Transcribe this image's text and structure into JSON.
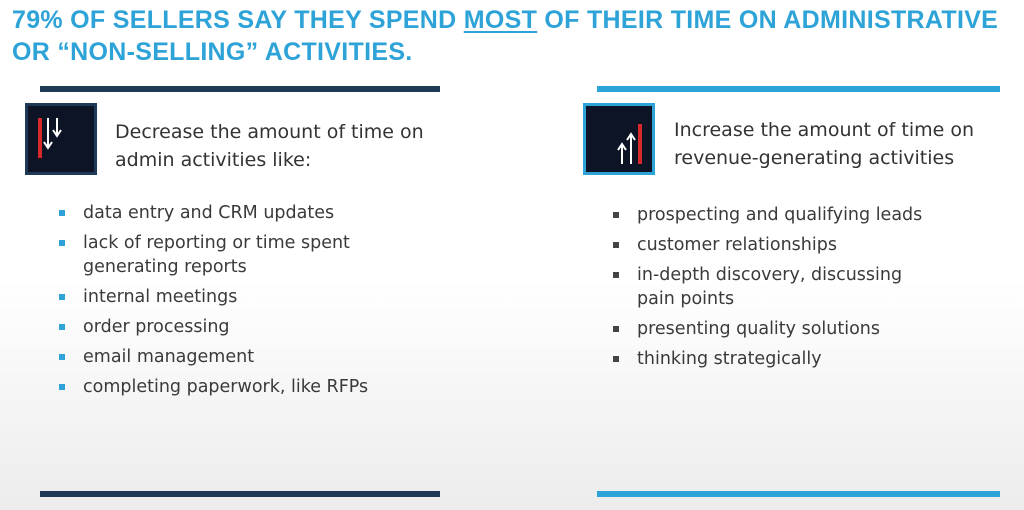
{
  "header": {
    "title_before": "79% OF SELLERS SAY THEY SPEND ",
    "title_emphasis": "MOST",
    "title_after": " OF THEIR TIME ON ADMINISTRATIVE OR “NON-SELLING” ACTIVITIES."
  },
  "columns": [
    {
      "heading": "Decrease the amount of time on admin activities like:",
      "items": [
        "data entry and CRM updates",
        "lack of reporting or time spent generating reports",
        "internal meetings",
        "order processing",
        "email management",
        "completing paperwork, like RFPs"
      ]
    },
    {
      "heading": "Increase the amount of time on revenue-generating activities",
      "items": [
        "prospecting and qualifying leads",
        "customer relationships",
        "in-depth discovery, discussing pain points",
        "presenting quality solutions",
        "thinking strategically"
      ]
    }
  ]
}
